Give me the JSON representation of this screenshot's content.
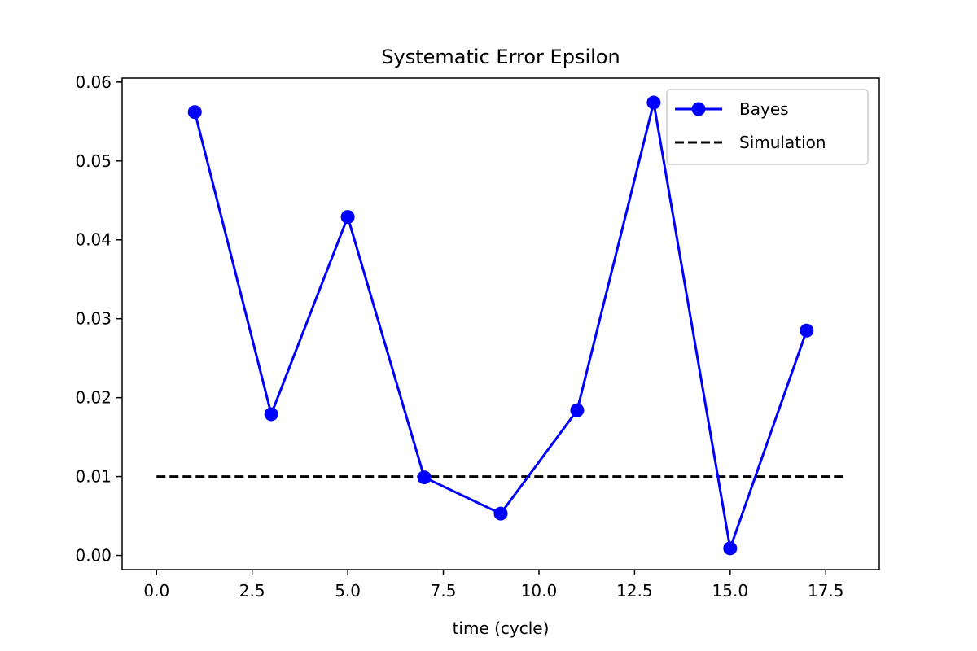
{
  "chart_data": {
    "type": "line",
    "title": "Systematic Error Epsilon",
    "xlabel": "time (cycle)",
    "ylabel": "",
    "xlim": [
      -0.9,
      18.9
    ],
    "ylim": [
      -0.0018,
      0.0605
    ],
    "x_ticks": [
      0.0,
      2.5,
      5.0,
      7.5,
      10.0,
      12.5,
      15.0,
      17.5
    ],
    "x_tick_labels": [
      "0.0",
      "2.5",
      "5.0",
      "7.5",
      "10.0",
      "12.5",
      "15.0",
      "17.5"
    ],
    "y_ticks": [
      0.0,
      0.01,
      0.02,
      0.03,
      0.04,
      0.05,
      0.06
    ],
    "y_tick_labels": [
      "0.00",
      "0.01",
      "0.02",
      "0.03",
      "0.04",
      "0.05",
      "0.06"
    ],
    "grid": false,
    "legend_position": "top-right",
    "series": [
      {
        "name": "Bayes",
        "style": "solid line with circle markers",
        "color": "#0000ff",
        "x": [
          1,
          3,
          5,
          7,
          9,
          11,
          13,
          15,
          17
        ],
        "y": [
          0.0562,
          0.0179,
          0.0429,
          0.0099,
          0.0053,
          0.0184,
          0.0574,
          0.0009,
          0.0285
        ]
      },
      {
        "name": "Simulation",
        "style": "dashed line",
        "color": "#000000",
        "x": [
          0,
          18
        ],
        "y": [
          0.01,
          0.01
        ]
      }
    ]
  }
}
